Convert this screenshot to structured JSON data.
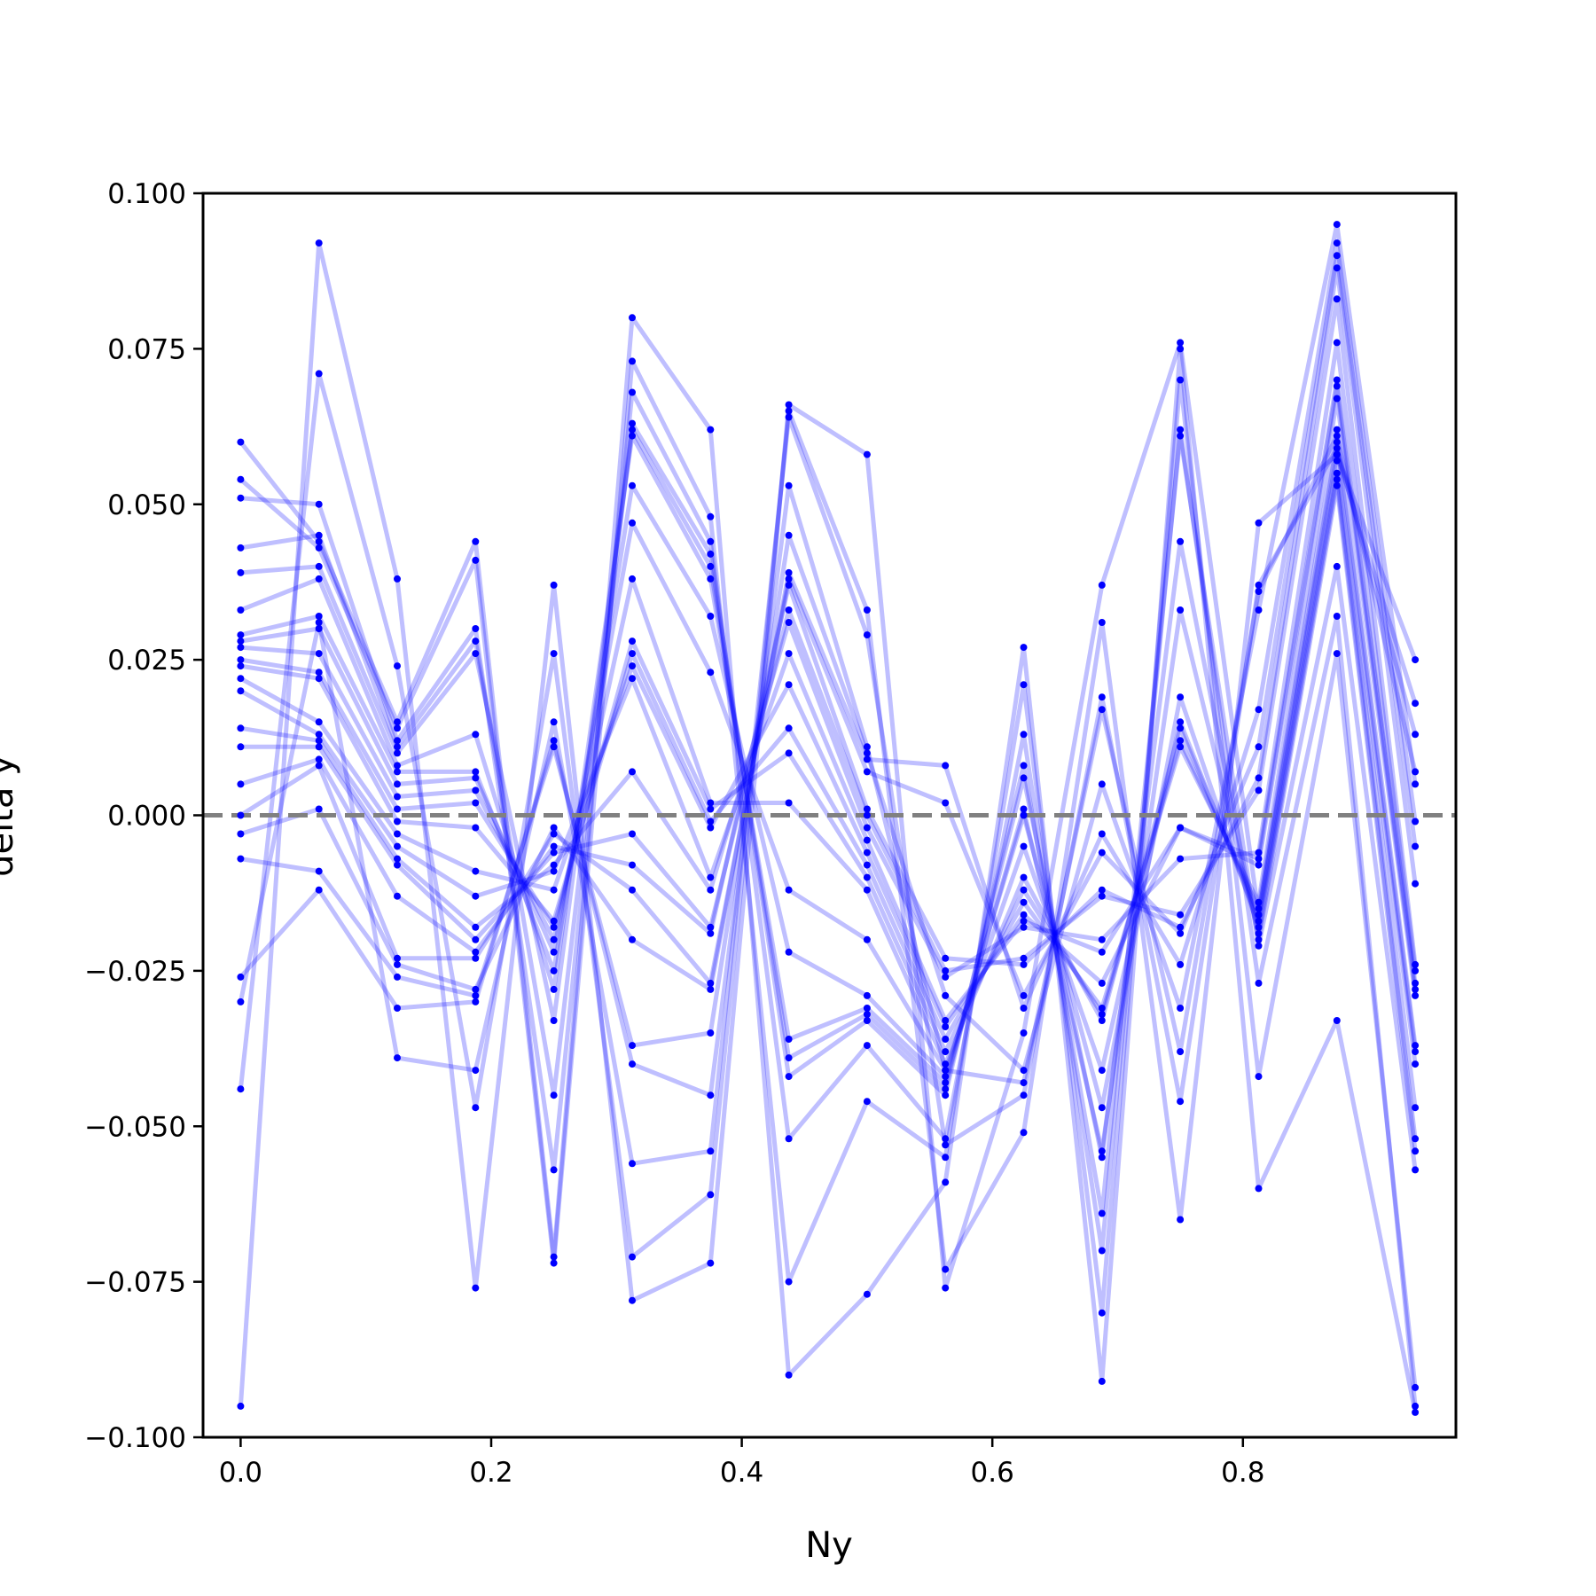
{
  "chart_data": {
    "type": "line",
    "title": "",
    "xlabel": "Ny",
    "ylabel": "delta y",
    "xlim": [
      -0.03,
      0.97
    ],
    "ylim": [
      -0.1,
      0.1
    ],
    "x_ticks": [
      0.0,
      0.2,
      0.4,
      0.6,
      0.8
    ],
    "x_tick_labels": [
      "0.0",
      "0.2",
      "0.4",
      "0.6",
      "0.8"
    ],
    "y_ticks": [
      0.1,
      0.075,
      0.05,
      0.025,
      0.0,
      -0.025,
      -0.05,
      -0.075,
      -0.1
    ],
    "y_tick_labels": [
      "0.100",
      "0.075",
      "0.050",
      "0.025",
      "0.000",
      "−0.025",
      "−0.050",
      "−0.075",
      "−0.100"
    ],
    "grid": false,
    "legend": "none",
    "reference_line": {
      "y": 0.0,
      "style": "dashed",
      "color": "#808080"
    },
    "line_color": "#0000ff",
    "line_opacity": 0.25,
    "marker_color": "#0000ff",
    "x": [
      0.0,
      0.0625,
      0.125,
      0.1875,
      0.25,
      0.3125,
      0.375,
      0.4375,
      0.5,
      0.5625,
      0.625,
      0.6875,
      0.75,
      0.8125,
      0.875,
      0.9375
    ],
    "series": [
      {
        "values": [
          0.06,
          0.044,
          0.015,
          0.044,
          -0.071,
          0.08,
          0.062,
          -0.09,
          -0.077,
          -0.059,
          0.027,
          -0.091,
          0.075,
          -0.06,
          -0.033,
          -0.096
        ]
      },
      {
        "values": [
          0.054,
          0.043,
          0.014,
          0.041,
          -0.072,
          0.073,
          0.048,
          -0.075,
          -0.046,
          -0.055,
          0.021,
          -0.08,
          0.07,
          -0.042,
          0.026,
          -0.092
        ]
      },
      {
        "values": [
          0.051,
          0.05,
          0.012,
          0.03,
          -0.057,
          0.068,
          0.044,
          -0.052,
          -0.037,
          -0.052,
          0.013,
          -0.07,
          0.062,
          -0.027,
          0.032,
          -0.095
        ]
      },
      {
        "values": [
          0.043,
          0.045,
          0.011,
          0.028,
          -0.045,
          0.063,
          0.042,
          -0.042,
          -0.033,
          -0.045,
          0.008,
          -0.064,
          0.061,
          -0.021,
          0.04,
          -0.057
        ]
      },
      {
        "values": [
          0.039,
          0.04,
          0.01,
          0.026,
          -0.033,
          0.062,
          0.04,
          -0.039,
          -0.032,
          -0.044,
          0.006,
          -0.055,
          0.044,
          -0.02,
          0.053,
          -0.054
        ]
      },
      {
        "values": [
          0.033,
          0.038,
          0.008,
          0.013,
          -0.028,
          0.061,
          0.038,
          -0.036,
          -0.031,
          -0.043,
          0.001,
          -0.054,
          0.033,
          -0.019,
          0.054,
          -0.052
        ]
      },
      {
        "values": [
          0.029,
          0.032,
          0.007,
          0.007,
          -0.025,
          0.053,
          0.032,
          -0.022,
          -0.029,
          -0.042,
          0.0,
          -0.047,
          0.019,
          -0.018,
          0.055,
          -0.047
        ]
      },
      {
        "values": [
          0.028,
          0.03,
          0.005,
          0.006,
          -0.022,
          0.047,
          0.023,
          -0.012,
          -0.02,
          -0.041,
          -0.005,
          -0.041,
          0.015,
          -0.017,
          0.057,
          -0.04
        ]
      },
      {
        "values": [
          0.027,
          0.026,
          0.003,
          0.004,
          -0.02,
          0.038,
          0.002,
          0.002,
          -0.012,
          -0.04,
          -0.01,
          -0.033,
          0.014,
          -0.016,
          0.06,
          -0.038
        ]
      },
      {
        "values": [
          0.025,
          0.023,
          0.001,
          0.002,
          -0.018,
          0.028,
          0.001,
          0.01,
          -0.01,
          -0.038,
          -0.012,
          -0.032,
          0.012,
          -0.015,
          0.062,
          -0.037
        ]
      },
      {
        "values": [
          0.024,
          0.022,
          -0.001,
          -0.002,
          -0.017,
          0.026,
          -0.001,
          0.014,
          -0.008,
          -0.036,
          -0.014,
          -0.031,
          0.011,
          -0.014,
          0.067,
          -0.029
        ]
      },
      {
        "values": [
          0.022,
          0.015,
          -0.003,
          -0.009,
          -0.012,
          0.024,
          -0.002,
          0.021,
          -0.006,
          -0.034,
          -0.016,
          -0.027,
          -0.002,
          -0.008,
          0.069,
          -0.028
        ]
      },
      {
        "values": [
          0.02,
          0.013,
          -0.005,
          -0.013,
          -0.009,
          0.022,
          -0.01,
          0.026,
          -0.004,
          -0.033,
          -0.017,
          -0.022,
          -0.002,
          -0.007,
          0.07,
          -0.027
        ]
      },
      {
        "values": [
          0.014,
          0.012,
          -0.007,
          -0.018,
          -0.008,
          0.007,
          -0.012,
          0.031,
          -0.002,
          -0.026,
          -0.018,
          -0.02,
          -0.007,
          -0.006,
          0.076,
          -0.025
        ]
      },
      {
        "values": [
          0.011,
          0.011,
          -0.008,
          -0.02,
          -0.006,
          -0.003,
          -0.018,
          0.033,
          0.0,
          -0.025,
          -0.023,
          -0.013,
          -0.016,
          0.004,
          0.083,
          -0.024
        ]
      },
      {
        "values": [
          0.005,
          0.009,
          -0.013,
          -0.022,
          -0.005,
          -0.008,
          -0.019,
          0.037,
          0.001,
          -0.023,
          -0.024,
          -0.012,
          -0.018,
          0.006,
          0.088,
          -0.011
        ]
      },
      {
        "values": [
          0.0,
          0.008,
          -0.023,
          -0.023,
          -0.003,
          -0.012,
          -0.027,
          0.038,
          0.007,
          0.002,
          -0.029,
          -0.006,
          -0.019,
          0.011,
          0.09,
          -0.005
        ]
      },
      {
        "values": [
          -0.003,
          0.001,
          -0.024,
          -0.028,
          -0.002,
          -0.02,
          -0.028,
          0.039,
          0.009,
          0.008,
          -0.031,
          -0.003,
          -0.024,
          0.017,
          0.092,
          -0.001
        ]
      },
      {
        "values": [
          -0.007,
          -0.009,
          -0.026,
          -0.029,
          0.011,
          -0.037,
          -0.035,
          0.045,
          0.01,
          -0.029,
          -0.041,
          0.005,
          -0.031,
          0.033,
          0.095,
          0.005
        ]
      },
      {
        "values": [
          -0.026,
          -0.012,
          -0.031,
          -0.03,
          0.012,
          -0.04,
          -0.045,
          0.053,
          0.011,
          -0.041,
          -0.043,
          0.017,
          -0.038,
          0.036,
          0.061,
          0.007
        ]
      },
      {
        "values": [
          -0.03,
          0.031,
          -0.039,
          -0.041,
          0.015,
          -0.056,
          -0.054,
          0.064,
          0.029,
          -0.053,
          -0.045,
          0.019,
          -0.046,
          0.037,
          0.059,
          0.013
        ]
      },
      {
        "values": [
          -0.044,
          0.071,
          0.024,
          -0.047,
          0.026,
          -0.071,
          -0.061,
          0.065,
          0.033,
          -0.073,
          -0.051,
          0.031,
          -0.065,
          0.047,
          0.058,
          0.018
        ]
      },
      {
        "values": [
          -0.095,
          0.092,
          0.038,
          -0.076,
          0.037,
          -0.078,
          -0.072,
          0.066,
          0.058,
          -0.076,
          -0.035,
          0.037,
          0.076,
          -0.016,
          0.058,
          0.025
        ]
      }
    ]
  }
}
